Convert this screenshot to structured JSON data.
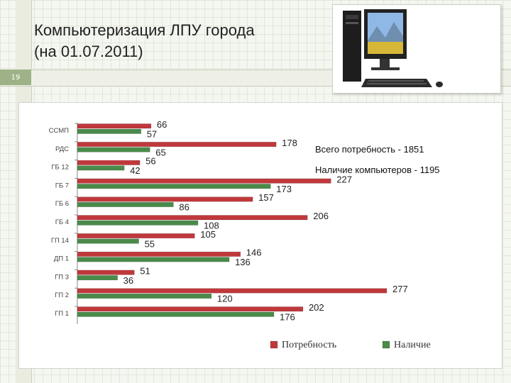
{
  "slide": {
    "title": "Компьютеризация ЛПУ города\n(на 01.07.2011)",
    "number": "19"
  },
  "notes": {
    "total_need": "Всего потребность - 1851",
    "available": "Наличие компьютеров - 1195"
  },
  "colors": {
    "need": "#c0383c",
    "have": "#4a8a4a"
  },
  "chart_data": {
    "type": "bar",
    "orientation": "horizontal",
    "categories": [
      "ССМП",
      "РДС",
      "ГБ 12",
      "ГБ 7",
      "ГБ 6",
      "ГБ 4",
      "ГП 14",
      "ДП 1",
      "ГП 3",
      "ГП 2",
      "ГП 1"
    ],
    "series": [
      {
        "name": "Потребность",
        "values": [
          66,
          178,
          56,
          227,
          157,
          206,
          105,
          146,
          51,
          277,
          202
        ]
      },
      {
        "name": "Наличие",
        "values": [
          57,
          65,
          42,
          173,
          86,
          108,
          55,
          136,
          36,
          120,
          176
        ]
      }
    ],
    "data_labels": true,
    "xlim": [
      0,
      277
    ],
    "grid": false,
    "legend": "bottom"
  }
}
